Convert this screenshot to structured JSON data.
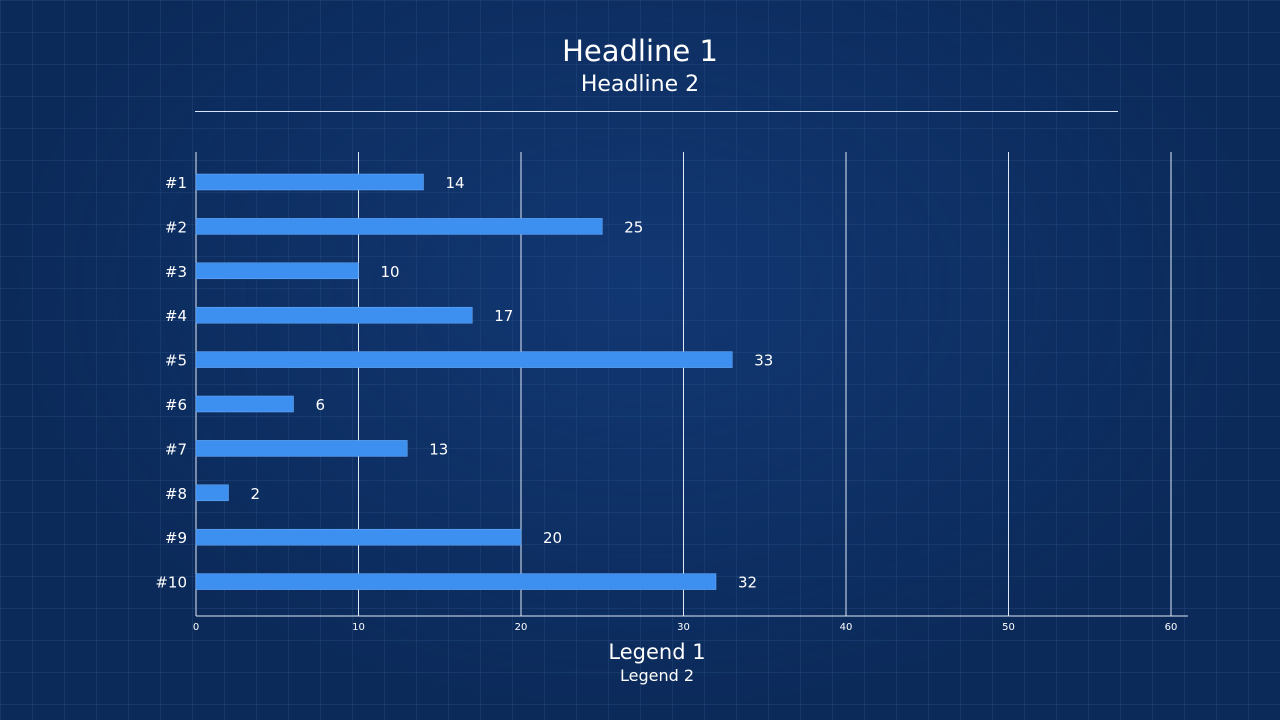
{
  "headline1": "Headline 1",
  "headline2": "Headline 2",
  "legend1": "Legend 1",
  "legend2": "Legend 2",
  "colors": {
    "background": "#0b2a5a",
    "bar": "#3d8ff0",
    "gridline": "#dfe9f7",
    "text": "#ffffff"
  },
  "chart_data": {
    "type": "bar",
    "orientation": "horizontal",
    "categories": [
      "#1",
      "#2",
      "#3",
      "#4",
      "#5",
      "#6",
      "#7",
      "#8",
      "#9",
      "#10"
    ],
    "values": [
      14,
      25,
      10,
      17,
      33,
      6,
      13,
      2,
      20,
      32
    ],
    "value_labels": [
      "14",
      "25",
      "10",
      "17",
      "33",
      "6",
      "13",
      "2",
      "20",
      "32"
    ],
    "xticks": [
      0,
      10,
      20,
      30,
      40,
      50,
      60
    ],
    "xlim": [
      0,
      60
    ],
    "grid": true
  }
}
